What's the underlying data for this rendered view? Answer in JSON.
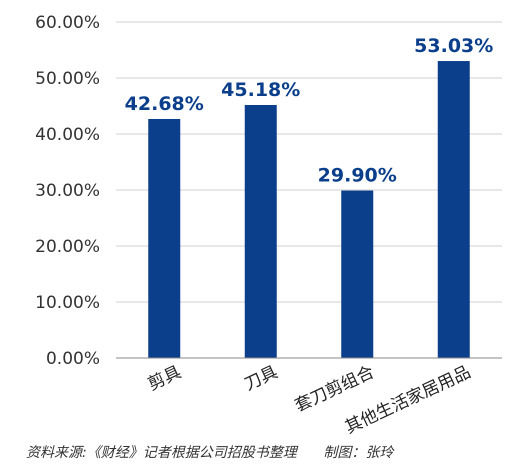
{
  "chart_data": {
    "type": "bar",
    "categories": [
      "剪具",
      "刀具",
      "套刀剪组合",
      "其他生活家居用品"
    ],
    "values": [
      42.68,
      45.18,
      29.9,
      53.03
    ],
    "data_labels": [
      "42.68%",
      "45.18%",
      "29.90%",
      "53.03%"
    ],
    "ylim": [
      0,
      60
    ],
    "yticks": [
      0,
      10,
      20,
      30,
      40,
      50,
      60
    ],
    "ytick_labels": [
      "0.00%",
      "10.00%",
      "20.00%",
      "30.00%",
      "40.00%",
      "50.00%",
      "60.00%"
    ],
    "grid": true,
    "legend": "none",
    "colors": {
      "bar": "#0b3f8c",
      "label": "#0b3f8c",
      "grid": "#d0d0d0",
      "axis": "#888888"
    }
  },
  "footer": {
    "source": "资料来源:《财经》记者根据公司招股书整理      制图：张玲"
  }
}
